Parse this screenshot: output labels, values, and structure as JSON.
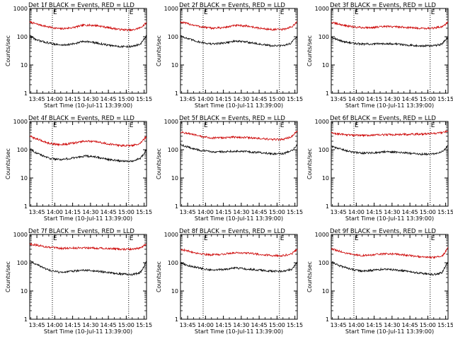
{
  "chart_data": {
    "type": "line",
    "x_ticks": [
      "13:45",
      "14:00",
      "14:15",
      "14:30",
      "14:45",
      "15:00",
      "15:15"
    ],
    "x_range": [
      "13:39",
      "15:17"
    ],
    "marker_times": [
      "13:58",
      "15:02"
    ],
    "marker_label": "E",
    "ylog": true,
    "ylim": [
      1,
      1000
    ],
    "y_ticks": [
      "1",
      "10",
      "100",
      "1000"
    ],
    "panels": [
      {
        "title": "Det 1f BLACK = Events, RED = LLD",
        "xlabel": "Start Time (10-Jul-11 13:39:00)",
        "ylabel": "Counts/sec",
        "series": [
          {
            "color": "#cc0000",
            "x": [
              "13:39",
              "13:45",
              "13:55",
              "14:05",
              "14:15",
              "14:25",
              "14:35",
              "14:45",
              "14:55",
              "15:05",
              "15:12",
              "15:17"
            ],
            "y": [
              330,
              280,
              220,
              190,
              210,
              260,
              250,
              210,
              180,
              170,
              210,
              310
            ]
          },
          {
            "color": "#000000",
            "x": [
              "13:39",
              "13:45",
              "13:55",
              "14:05",
              "14:15",
              "14:25",
              "14:35",
              "14:45",
              "14:55",
              "15:05",
              "15:12",
              "15:17"
            ],
            "y": [
              110,
              75,
              60,
              50,
              55,
              70,
              60,
              50,
              45,
              45,
              55,
              110
            ]
          }
        ]
      },
      {
        "title": "Det 2f BLACK = Events, RED = LLD",
        "xlabel": "Start Time (10-Jul-11 13:39:00)",
        "ylabel": "Counts/sec",
        "series": [
          {
            "color": "#cc0000",
            "x": [
              "13:39",
              "13:45",
              "13:55",
              "14:05",
              "14:15",
              "14:25",
              "14:35",
              "14:45",
              "14:55",
              "15:05",
              "15:12",
              "15:17"
            ],
            "y": [
              330,
              290,
              230,
              200,
              210,
              250,
              240,
              200,
              180,
              180,
              220,
              330
            ]
          },
          {
            "color": "#000000",
            "x": [
              "13:39",
              "13:45",
              "13:55",
              "14:05",
              "14:15",
              "14:25",
              "14:35",
              "14:45",
              "14:55",
              "15:05",
              "15:12",
              "15:17"
            ],
            "y": [
              110,
              85,
              65,
              55,
              60,
              70,
              65,
              55,
              48,
              48,
              60,
              110
            ]
          }
        ]
      },
      {
        "title": "Det 3f BLACK = Events, RED = LLD",
        "xlabel": "Start Time (10-Jul-11 13:39:00)",
        "ylabel": "Counts/sec",
        "series": [
          {
            "color": "#cc0000",
            "x": [
              "13:39",
              "13:45",
              "13:55",
              "14:05",
              "14:15",
              "14:25",
              "14:35",
              "14:45",
              "14:55",
              "15:05",
              "15:12",
              "15:17"
            ],
            "y": [
              320,
              280,
              230,
              210,
              215,
              230,
              225,
              210,
              200,
              200,
              230,
              320
            ]
          },
          {
            "color": "#000000",
            "x": [
              "13:39",
              "13:45",
              "13:55",
              "14:05",
              "14:15",
              "14:25",
              "14:35",
              "14:45",
              "14:55",
              "15:05",
              "15:12",
              "15:17"
            ],
            "y": [
              100,
              75,
              60,
              55,
              55,
              58,
              55,
              50,
              48,
              48,
              55,
              100
            ]
          }
        ]
      },
      {
        "title": "Det 4f BLACK = Events, RED = LLD",
        "xlabel": "Start Time (10-Jul-11 13:39:00)",
        "ylabel": "Counts/sec",
        "series": [
          {
            "color": "#cc0000",
            "x": [
              "13:39",
              "13:45",
              "13:55",
              "14:05",
              "14:15",
              "14:25",
              "14:35",
              "14:45",
              "14:55",
              "15:05",
              "15:12",
              "15:17"
            ],
            "y": [
              300,
              240,
              170,
              150,
              170,
              200,
              190,
              160,
              140,
              140,
              170,
              300
            ]
          },
          {
            "color": "#000000",
            "x": [
              "13:39",
              "13:45",
              "13:55",
              "14:05",
              "14:15",
              "14:25",
              "14:35",
              "14:45",
              "14:55",
              "15:05",
              "15:12",
              "15:17"
            ],
            "y": [
              110,
              75,
              50,
              45,
              50,
              60,
              55,
              45,
              40,
              40,
              50,
              100
            ]
          }
        ]
      },
      {
        "title": "Det 5f BLACK = Events, RED = LLD",
        "xlabel": "Start Time (10-Jul-11 13:39:00)",
        "ylabel": "Counts/sec",
        "series": [
          {
            "color": "#cc0000",
            "x": [
              "13:39",
              "13:45",
              "13:55",
              "14:05",
              "14:15",
              "14:25",
              "14:35",
              "14:45",
              "14:55",
              "15:05",
              "15:12",
              "15:17"
            ],
            "y": [
              420,
              380,
              300,
              260,
              265,
              280,
              270,
              250,
              230,
              230,
              290,
              450
            ]
          },
          {
            "color": "#000000",
            "x": [
              "13:39",
              "13:45",
              "13:55",
              "14:05",
              "14:15",
              "14:25",
              "14:35",
              "14:45",
              "14:55",
              "15:05",
              "15:12",
              "15:17"
            ],
            "y": [
              150,
              125,
              95,
              85,
              85,
              90,
              85,
              80,
              72,
              72,
              90,
              150
            ]
          }
        ]
      },
      {
        "title": "Det 6f BLACK = Events, RED = LLD",
        "xlabel": "Start Time (10-Jul-11 13:39:00)",
        "ylabel": "Counts/sec",
        "series": [
          {
            "color": "#cc0000",
            "x": [
              "13:39",
              "13:45",
              "13:55",
              "14:05",
              "14:15",
              "14:25",
              "14:35",
              "14:45",
              "14:55",
              "15:05",
              "15:12",
              "15:17"
            ],
            "y": [
              390,
              360,
              330,
              320,
              330,
              340,
              345,
              350,
              360,
              380,
              400,
              450
            ]
          },
          {
            "color": "#000000",
            "x": [
              "13:39",
              "13:45",
              "13:55",
              "14:05",
              "14:15",
              "14:25",
              "14:35",
              "14:45",
              "14:55",
              "15:05",
              "15:12",
              "15:17"
            ],
            "y": [
              130,
              110,
              85,
              75,
              78,
              85,
              82,
              75,
              70,
              70,
              85,
              140
            ]
          }
        ]
      },
      {
        "title": "Det 7f BLACK = Events, RED = LLD",
        "xlabel": "Start Time (10-Jul-11 13:39:00)",
        "ylabel": "Counts/sec",
        "series": [
          {
            "color": "#cc0000",
            "x": [
              "13:39",
              "13:45",
              "13:55",
              "14:05",
              "14:15",
              "14:25",
              "14:35",
              "14:45",
              "14:55",
              "15:05",
              "15:12",
              "15:17"
            ],
            "y": [
              460,
              420,
              350,
              320,
              330,
              340,
              330,
              320,
              300,
              300,
              330,
              460
            ]
          },
          {
            "color": "#000000",
            "x": [
              "13:39",
              "13:45",
              "13:55",
              "14:05",
              "14:15",
              "14:25",
              "14:35",
              "14:45",
              "14:55",
              "15:05",
              "15:12",
              "15:17"
            ],
            "y": [
              120,
              85,
              55,
              45,
              50,
              55,
              50,
              45,
              40,
              38,
              45,
              110
            ]
          }
        ]
      },
      {
        "title": "Det 8f BLACK = Events, RED = LLD",
        "xlabel": "Start Time (10-Jul-11 13:39:00)",
        "ylabel": "Counts/sec",
        "series": [
          {
            "color": "#cc0000",
            "x": [
              "13:39",
              "13:45",
              "13:55",
              "14:05",
              "14:15",
              "14:25",
              "14:35",
              "14:45",
              "14:55",
              "15:05",
              "15:12",
              "15:17"
            ],
            "y": [
              300,
              260,
              210,
              190,
              200,
              230,
              220,
              200,
              180,
              180,
              200,
              300
            ]
          },
          {
            "color": "#000000",
            "x": [
              "13:39",
              "13:45",
              "13:55",
              "14:05",
              "14:15",
              "14:25",
              "14:35",
              "14:45",
              "14:55",
              "15:05",
              "15:12",
              "15:17"
            ],
            "y": [
              100,
              80,
              65,
              55,
              58,
              65,
              60,
              55,
              50,
              50,
              58,
              100
            ]
          }
        ]
      },
      {
        "title": "Det 9f BLACK = Events, RED = LLD",
        "xlabel": "Start Time (10-Jul-11 13:39:00)",
        "ylabel": "Counts/sec",
        "series": [
          {
            "color": "#cc0000",
            "x": [
              "13:39",
              "13:45",
              "13:55",
              "14:05",
              "14:15",
              "14:25",
              "14:35",
              "14:45",
              "14:55",
              "15:05",
              "15:12",
              "15:17"
            ],
            "y": [
              310,
              260,
              200,
              180,
              190,
              210,
              200,
              180,
              160,
              150,
              170,
              330
            ]
          },
          {
            "color": "#000000",
            "x": [
              "13:39",
              "13:45",
              "13:55",
              "14:05",
              "14:15",
              "14:25",
              "14:35",
              "14:45",
              "14:55",
              "15:05",
              "15:12",
              "15:17"
            ],
            "y": [
              110,
              80,
              60,
              50,
              55,
              60,
              55,
              48,
              42,
              38,
              45,
              110
            ]
          }
        ]
      }
    ]
  }
}
